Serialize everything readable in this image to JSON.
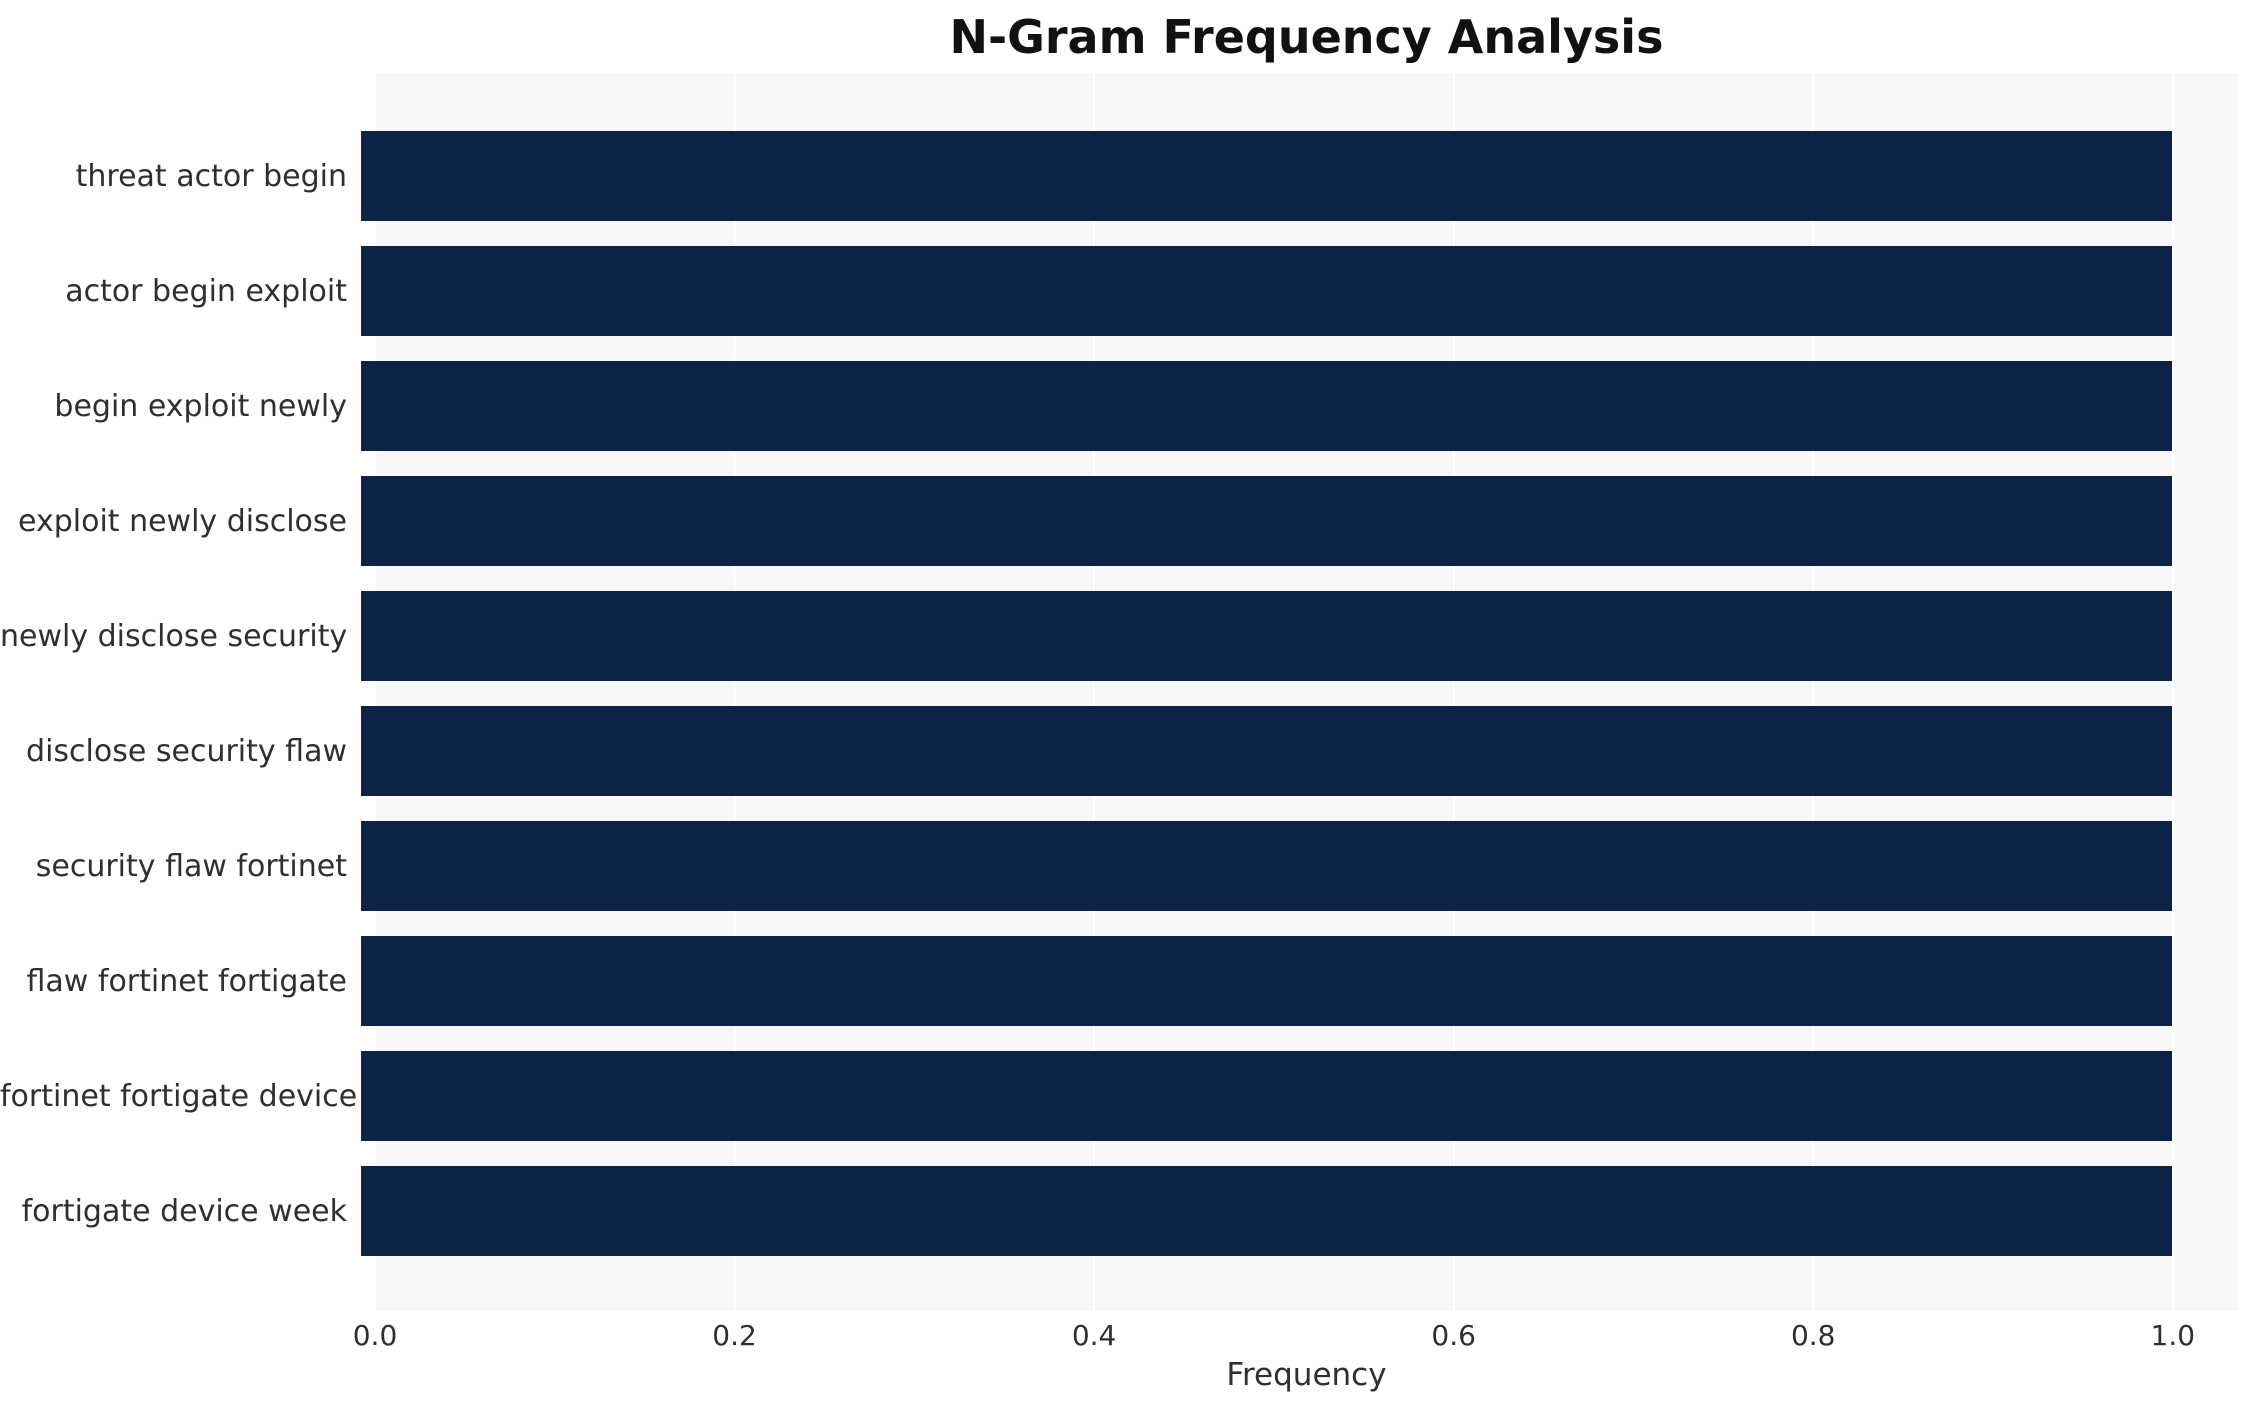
{
  "chart_data": {
    "type": "bar",
    "orientation": "horizontal",
    "title": "N-Gram Frequency Analysis",
    "xlabel": "Frequency",
    "categories": [
      "threat actor begin",
      "actor begin exploit",
      "begin exploit newly",
      "exploit newly disclose",
      "newly disclose security",
      "disclose security flaw",
      "security flaw fortinet",
      "flaw fortinet fortigate",
      "fortinet fortigate device",
      "fortigate device week"
    ],
    "values": [
      1.0,
      1.0,
      1.0,
      1.0,
      1.0,
      1.0,
      1.0,
      1.0,
      1.0,
      1.0
    ],
    "xlim": [
      0,
      1.0
    ],
    "xticks": [
      "0.0",
      "0.2",
      "0.4",
      "0.6",
      "0.8",
      "1.0"
    ],
    "grid": true,
    "legend": "none",
    "colors": {
      "bar": "#0c2247",
      "plot_background": "#f7f7f7",
      "gridline": "#ffffff",
      "text": "#2f2f2f"
    }
  }
}
